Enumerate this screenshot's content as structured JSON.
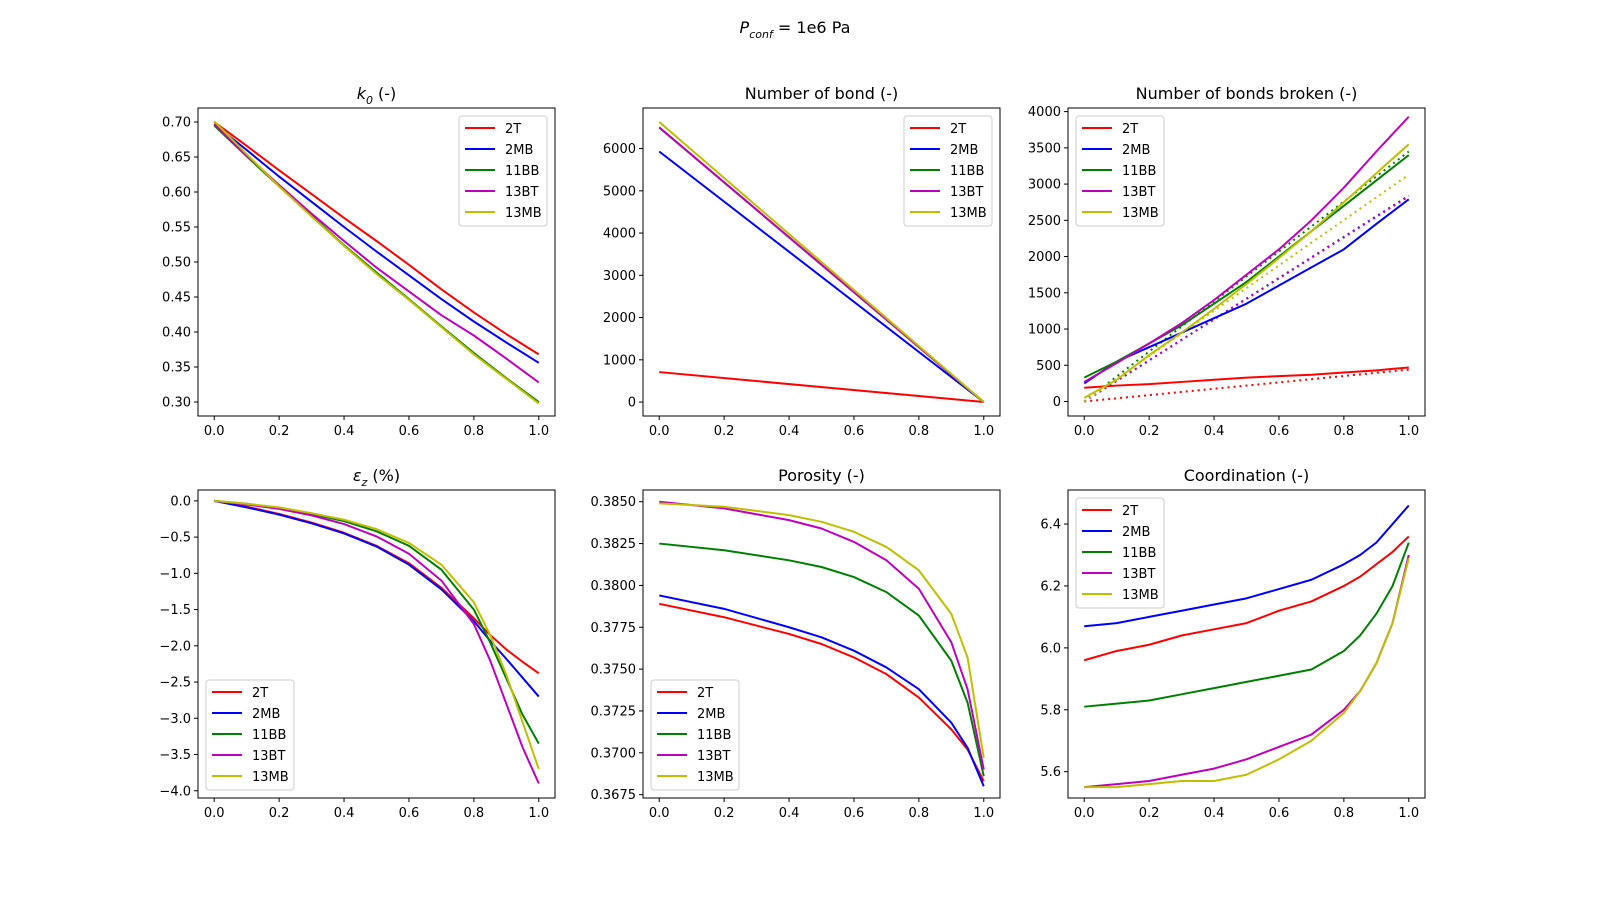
{
  "figure": {
    "suptitle_main": "P",
    "suptitle_sub": "conf",
    "suptitle_rest": " = 1e6 Pa"
  },
  "colors": {
    "2T": "#ff0000",
    "2MB": "#0000ff",
    "11BB": "#008000",
    "13BT": "#bf00bf",
    "13MB": "#bfbf00"
  },
  "legend_entries": [
    "2T",
    "2MB",
    "11BB",
    "13BT",
    "13MB"
  ],
  "chart_data": [
    {
      "type": "line",
      "title_main": "k",
      "title_sub": "0",
      "title_rest": " (-)",
      "xlim": [
        -0.05,
        1.05
      ],
      "ylim": [
        0.28,
        0.72
      ],
      "xticks": [
        0.0,
        0.2,
        0.4,
        0.6,
        0.8,
        1.0
      ],
      "xtick_labels": [
        "0.0",
        "0.2",
        "0.4",
        "0.6",
        "0.8",
        "1.0"
      ],
      "yticks": [
        0.3,
        0.35,
        0.4,
        0.45,
        0.5,
        0.55,
        0.6,
        0.65,
        0.7
      ],
      "ytick_labels": [
        "0.30",
        "0.35",
        "0.40",
        "0.45",
        "0.50",
        "0.55",
        "0.60",
        "0.65",
        "0.70"
      ],
      "legend_loc": "upper-right",
      "x": [
        0.0,
        0.1,
        0.2,
        0.3,
        0.4,
        0.5,
        0.6,
        0.7,
        0.8,
        0.9,
        1.0
      ],
      "series": [
        {
          "name": "2T",
          "values": [
            0.7,
            0.666,
            0.631,
            0.597,
            0.563,
            0.53,
            0.496,
            0.461,
            0.428,
            0.397,
            0.368
          ]
        },
        {
          "name": "2MB",
          "values": [
            0.697,
            0.66,
            0.622,
            0.586,
            0.55,
            0.515,
            0.481,
            0.447,
            0.415,
            0.385,
            0.356
          ]
        },
        {
          "name": "11BB",
          "values": [
            0.695,
            0.651,
            0.608,
            0.566,
            0.524,
            0.485,
            0.447,
            0.408,
            0.37,
            0.334,
            0.3
          ]
        },
        {
          "name": "13BT",
          "values": [
            0.697,
            0.652,
            0.61,
            0.569,
            0.53,
            0.492,
            0.458,
            0.424,
            0.395,
            0.362,
            0.328
          ]
        },
        {
          "name": "13MB",
          "values": [
            0.701,
            0.654,
            0.608,
            0.565,
            0.523,
            0.483,
            0.446,
            0.407,
            0.368,
            0.333,
            0.298
          ]
        }
      ]
    },
    {
      "type": "line",
      "title_main": "Number of bond (-)",
      "title_sub": "",
      "title_rest": "",
      "xlim": [
        -0.05,
        1.05
      ],
      "ylim": [
        -330,
        6960
      ],
      "xticks": [
        0.0,
        0.2,
        0.4,
        0.6,
        0.8,
        1.0
      ],
      "xtick_labels": [
        "0.0",
        "0.2",
        "0.4",
        "0.6",
        "0.8",
        "1.0"
      ],
      "yticks": [
        0,
        1000,
        2000,
        3000,
        4000,
        5000,
        6000
      ],
      "ytick_labels": [
        "0",
        "1000",
        "2000",
        "3000",
        "4000",
        "5000",
        "6000"
      ],
      "legend_loc": "upper-right",
      "x": [
        0.0,
        1.0
      ],
      "series": [
        {
          "name": "2T",
          "values": [
            710,
            0
          ]
        },
        {
          "name": "2MB",
          "values": [
            5930,
            0
          ]
        },
        {
          "name": "11BB",
          "values": [
            6500,
            0
          ]
        },
        {
          "name": "13BT",
          "values": [
            6500,
            0
          ]
        },
        {
          "name": "13MB",
          "values": [
            6630,
            0
          ]
        }
      ]
    },
    {
      "type": "line",
      "title_main": "Number of bonds broken (-)",
      "title_sub": "",
      "title_rest": "",
      "xlim": [
        -0.05,
        1.05
      ],
      "ylim": [
        -200,
        4050
      ],
      "xticks": [
        0.0,
        0.2,
        0.4,
        0.6,
        0.8,
        1.0
      ],
      "xtick_labels": [
        "0.0",
        "0.2",
        "0.4",
        "0.6",
        "0.8",
        "1.0"
      ],
      "yticks": [
        0,
        500,
        1000,
        1500,
        2000,
        2500,
        3000,
        3500,
        4000
      ],
      "ytick_labels": [
        "0",
        "500",
        "1000",
        "1500",
        "2000",
        "2500",
        "3000",
        "3500",
        "4000"
      ],
      "legend_loc": "upper-left",
      "x": [
        0.0,
        0.1,
        0.2,
        0.3,
        0.4,
        0.5,
        0.6,
        0.7,
        0.8,
        0.9,
        1.0
      ],
      "series": [
        {
          "name": "2T",
          "values": [
            190,
            220,
            240,
            270,
            300,
            330,
            350,
            370,
            400,
            430,
            470
          ]
        },
        {
          "name": "2MB",
          "values": [
            250,
            550,
            750,
            950,
            1150,
            1350,
            1600,
            1850,
            2100,
            2450,
            2790
          ]
        },
        {
          "name": "11BB",
          "values": [
            330,
            550,
            800,
            1050,
            1350,
            1650,
            2000,
            2350,
            2700,
            3050,
            3400
          ]
        },
        {
          "name": "13BT",
          "values": [
            270,
            530,
            800,
            1080,
            1400,
            1750,
            2100,
            2500,
            2950,
            3450,
            3930
          ]
        },
        {
          "name": "13MB",
          "values": [
            50,
            300,
            640,
            950,
            1280,
            1620,
            1980,
            2350,
            2750,
            3150,
            3550
          ]
        }
      ],
      "fit_series": [
        {
          "name": "2T",
          "values": [
            0,
            440
          ]
        },
        {
          "name": "2MB",
          "values": [
            0,
            2840
          ]
        },
        {
          "name": "11BB",
          "values": [
            0,
            3450
          ]
        },
        {
          "name": "13BT",
          "values": [
            0,
            2830
          ]
        },
        {
          "name": "13MB",
          "values": [
            0,
            3130
          ]
        }
      ]
    },
    {
      "type": "line",
      "title_main": "ε",
      "title_sub": "z",
      "title_rest": " (%)",
      "xlim": [
        -0.05,
        1.05
      ],
      "ylim": [
        -4.1,
        0.15
      ],
      "xticks": [
        0.0,
        0.2,
        0.4,
        0.6,
        0.8,
        1.0
      ],
      "xtick_labels": [
        "0.0",
        "0.2",
        "0.4",
        "0.6",
        "0.8",
        "1.0"
      ],
      "yticks": [
        0.0,
        -0.5,
        -1.0,
        -1.5,
        -2.0,
        -2.5,
        -3.0,
        -3.5,
        -4.0
      ],
      "ytick_labels": [
        "0.0",
        "−0.5",
        "−1.0",
        "−1.5",
        "−2.0",
        "−2.5",
        "−3.0",
        "−3.5",
        "−4.0"
      ],
      "legend_loc": "lower-left",
      "x": [
        0.0,
        0.1,
        0.2,
        0.3,
        0.4,
        0.5,
        0.6,
        0.7,
        0.8,
        0.85,
        0.9,
        0.95,
        1.0
      ],
      "series": [
        {
          "name": "2T",
          "values": [
            0,
            -0.08,
            -0.18,
            -0.3,
            -0.44,
            -0.62,
            -0.86,
            -1.2,
            -1.62,
            -1.85,
            -2.05,
            -2.22,
            -2.38
          ]
        },
        {
          "name": "2MB",
          "values": [
            0,
            -0.09,
            -0.19,
            -0.31,
            -0.45,
            -0.63,
            -0.88,
            -1.22,
            -1.66,
            -1.93,
            -2.18,
            -2.44,
            -2.7
          ]
        },
        {
          "name": "11BB",
          "values": [
            0,
            -0.04,
            -0.1,
            -0.18,
            -0.28,
            -0.42,
            -0.62,
            -0.95,
            -1.5,
            -1.95,
            -2.45,
            -2.95,
            -3.35
          ]
        },
        {
          "name": "13BT",
          "values": [
            0,
            -0.05,
            -0.11,
            -0.2,
            -0.32,
            -0.49,
            -0.73,
            -1.1,
            -1.7,
            -2.2,
            -2.8,
            -3.4,
            -3.9
          ]
        },
        {
          "name": "13MB",
          "values": [
            0,
            -0.04,
            -0.09,
            -0.17,
            -0.26,
            -0.39,
            -0.58,
            -0.88,
            -1.4,
            -1.85,
            -2.4,
            -3.05,
            -3.7
          ]
        }
      ]
    },
    {
      "type": "line",
      "title_main": "Porosity (-)",
      "title_sub": "",
      "title_rest": "",
      "xlim": [
        -0.05,
        1.05
      ],
      "ylim": [
        0.3673,
        0.3857
      ],
      "xticks": [
        0.0,
        0.2,
        0.4,
        0.6,
        0.8,
        1.0
      ],
      "xtick_labels": [
        "0.0",
        "0.2",
        "0.4",
        "0.6",
        "0.8",
        "1.0"
      ],
      "yticks": [
        0.3675,
        0.37,
        0.3725,
        0.375,
        0.3775,
        0.38,
        0.3825,
        0.385
      ],
      "ytick_labels": [
        "0.3675",
        "0.3700",
        "0.3725",
        "0.3750",
        "0.3775",
        "0.3800",
        "0.3825",
        "0.3850"
      ],
      "legend_loc": "lower-left",
      "x": [
        0.0,
        0.2,
        0.4,
        0.5,
        0.6,
        0.7,
        0.8,
        0.9,
        0.95,
        1.0
      ],
      "series": [
        {
          "name": "2T",
          "values": [
            0.3789,
            0.3781,
            0.3771,
            0.3765,
            0.3757,
            0.3747,
            0.3733,
            0.3714,
            0.3702,
            0.3683
          ]
        },
        {
          "name": "2MB",
          "values": [
            0.3794,
            0.3786,
            0.3775,
            0.3769,
            0.3761,
            0.3751,
            0.3738,
            0.3718,
            0.3703,
            0.368
          ]
        },
        {
          "name": "11BB",
          "values": [
            0.3825,
            0.3821,
            0.3815,
            0.3811,
            0.3805,
            0.3796,
            0.3782,
            0.3755,
            0.373,
            0.3686
          ]
        },
        {
          "name": "13BT",
          "values": [
            0.385,
            0.3846,
            0.3839,
            0.3834,
            0.3826,
            0.3815,
            0.3798,
            0.3766,
            0.3738,
            0.369
          ]
        },
        {
          "name": "13MB",
          "values": [
            0.3849,
            0.3847,
            0.3842,
            0.3838,
            0.3832,
            0.3823,
            0.3809,
            0.3783,
            0.3757,
            0.3697
          ]
        }
      ]
    },
    {
      "type": "line",
      "title_main": "Coordination (-)",
      "title_sub": "",
      "title_rest": "",
      "xlim": [
        -0.05,
        1.05
      ],
      "ylim": [
        5.515,
        6.51
      ],
      "xticks": [
        0.0,
        0.2,
        0.4,
        0.6,
        0.8,
        1.0
      ],
      "xtick_labels": [
        "0.0",
        "0.2",
        "0.4",
        "0.6",
        "0.8",
        "1.0"
      ],
      "yticks": [
        5.6,
        5.8,
        6.0,
        6.2,
        6.4
      ],
      "ytick_labels": [
        "5.6",
        "5.8",
        "6.0",
        "6.2",
        "6.4"
      ],
      "legend_loc": "upper-left",
      "x": [
        0.0,
        0.1,
        0.2,
        0.3,
        0.4,
        0.5,
        0.6,
        0.7,
        0.8,
        0.85,
        0.9,
        0.95,
        1.0
      ],
      "series": [
        {
          "name": "2T",
          "values": [
            5.96,
            5.99,
            6.01,
            6.04,
            6.06,
            6.08,
            6.12,
            6.15,
            6.2,
            6.23,
            6.27,
            6.31,
            6.36
          ]
        },
        {
          "name": "2MB",
          "values": [
            6.07,
            6.08,
            6.1,
            6.12,
            6.14,
            6.16,
            6.19,
            6.22,
            6.27,
            6.3,
            6.34,
            6.4,
            6.46
          ]
        },
        {
          "name": "11BB",
          "values": [
            5.81,
            5.82,
            5.83,
            5.85,
            5.87,
            5.89,
            5.91,
            5.93,
            5.99,
            6.04,
            6.11,
            6.2,
            6.34
          ]
        },
        {
          "name": "13BT",
          "values": [
            5.55,
            5.56,
            5.57,
            5.59,
            5.61,
            5.64,
            5.68,
            5.72,
            5.8,
            5.86,
            5.95,
            6.08,
            6.3
          ]
        },
        {
          "name": "13MB",
          "values": [
            5.55,
            5.55,
            5.56,
            5.57,
            5.57,
            5.59,
            5.64,
            5.7,
            5.79,
            5.86,
            5.95,
            6.08,
            6.29
          ]
        }
      ]
    }
  ]
}
